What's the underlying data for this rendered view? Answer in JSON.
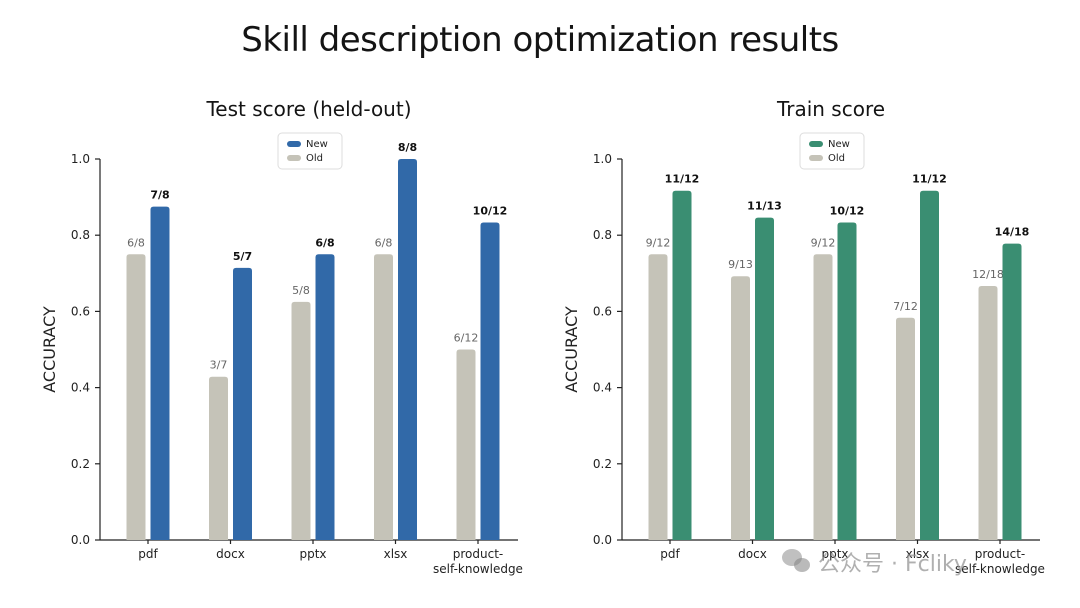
{
  "page": {
    "title": "Skill description optimization results"
  },
  "chart_data": [
    {
      "type": "bar",
      "title": "Test score (held-out)",
      "ylabel": "ACCURACY",
      "xlabel": "",
      "ylim": [
        0,
        1.0
      ],
      "yticks": [
        0.0,
        0.2,
        0.4,
        0.6,
        0.8,
        1.0
      ],
      "ytick_labels": [
        "0.0",
        "0.2",
        "0.4",
        "0.6",
        "0.8",
        "1.0"
      ],
      "grid": false,
      "legend_position": "top-center",
      "categories": [
        "pdf",
        "docx",
        "pptx",
        "xlsx",
        "product-self-knowledge"
      ],
      "category_labels": [
        [
          "pdf"
        ],
        [
          "docx"
        ],
        [
          "pptx"
        ],
        [
          "xlsx"
        ],
        [
          "product-",
          "self-knowledge"
        ]
      ],
      "series": [
        {
          "name": "Old",
          "color": "#c5c3b8",
          "values": [
            0.75,
            0.4286,
            0.625,
            0.75,
            0.5
          ],
          "labels": [
            "6/8",
            "3/7",
            "5/8",
            "6/8",
            "6/12"
          ]
        },
        {
          "name": "New",
          "color": "#3169a8",
          "values": [
            0.875,
            0.7143,
            0.75,
            1.0,
            0.8333
          ],
          "labels": [
            "7/8",
            "5/7",
            "6/8",
            "8/8",
            "10/12"
          ]
        }
      ]
    },
    {
      "type": "bar",
      "title": "Train score",
      "ylabel": "ACCURACY",
      "xlabel": "",
      "ylim": [
        0,
        1.0
      ],
      "yticks": [
        0.0,
        0.2,
        0.4,
        0.6,
        0.8,
        1.0
      ],
      "ytick_labels": [
        "0.0",
        "0.2",
        "0.4",
        "0.6",
        "0.8",
        "1.0"
      ],
      "grid": false,
      "legend_position": "top-center",
      "categories": [
        "pdf",
        "docx",
        "pptx",
        "xlsx",
        "product-self-knowledge"
      ],
      "category_labels": [
        [
          "pdf"
        ],
        [
          "docx"
        ],
        [
          "pptx"
        ],
        [
          "xlsx"
        ],
        [
          "product-",
          "self-knowledge"
        ]
      ],
      "series": [
        {
          "name": "Old",
          "color": "#c5c3b8",
          "values": [
            0.75,
            0.6923,
            0.75,
            0.5833,
            0.6667
          ],
          "labels": [
            "9/12",
            "9/13",
            "9/12",
            "7/12",
            "12/18"
          ]
        },
        {
          "name": "New",
          "color": "#3a8e72",
          "values": [
            0.9167,
            0.8462,
            0.8333,
            0.9167,
            0.7778
          ],
          "labels": [
            "11/12",
            "11/13",
            "10/12",
            "11/12",
            "14/18"
          ]
        }
      ]
    }
  ],
  "watermark": {
    "text": "公众号 · Fcliky"
  }
}
